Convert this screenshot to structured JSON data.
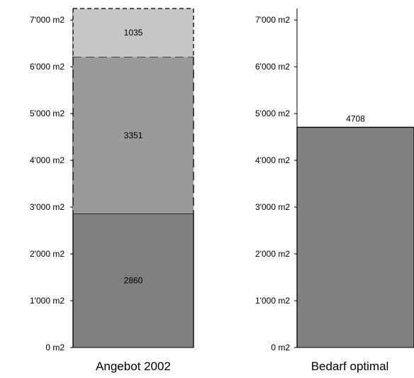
{
  "chart_data": [
    {
      "type": "bar",
      "stacked": true,
      "categories": [
        "Angebot 2002"
      ],
      "series": [
        {
          "values": [
            2860
          ],
          "label": "2860",
          "color": "#7f7f7f",
          "border": "solid"
        },
        {
          "values": [
            3351
          ],
          "label": "3351",
          "color": "#9a9a9a",
          "border": "long-dash"
        },
        {
          "values": [
            1035
          ],
          "label": "1035",
          "color": "#c6c6c6",
          "border": "short-dash"
        }
      ],
      "ylim": [
        0,
        7246
      ],
      "y_ticks": [
        0,
        1000,
        2000,
        3000,
        4000,
        5000,
        6000,
        7000
      ],
      "y_tick_labels": [
        "0 m2",
        "1'000 m2",
        "2'000 m2",
        "3'000 m2",
        "4'000 m2",
        "5'000 m2",
        "6'000 m2",
        "7'000 m2"
      ],
      "xlabel": "Angebot 2002",
      "grid": false
    },
    {
      "type": "bar",
      "categories": [
        "Bedarf optimal"
      ],
      "series": [
        {
          "values": [
            4708
          ],
          "label": "4708",
          "color": "#808080",
          "border": "solid"
        }
      ],
      "ylim": [
        0,
        7246
      ],
      "y_ticks": [
        0,
        1000,
        2000,
        3000,
        4000,
        5000,
        6000,
        7000
      ],
      "y_tick_labels": [
        "0 m2",
        "1'000 m2",
        "2'000 m2",
        "3'000 m2",
        "4'000 m2",
        "5'000 m2",
        "6'000 m2",
        "7'000 m2"
      ],
      "xlabel": "Bedarf optimal",
      "grid": false
    }
  ]
}
